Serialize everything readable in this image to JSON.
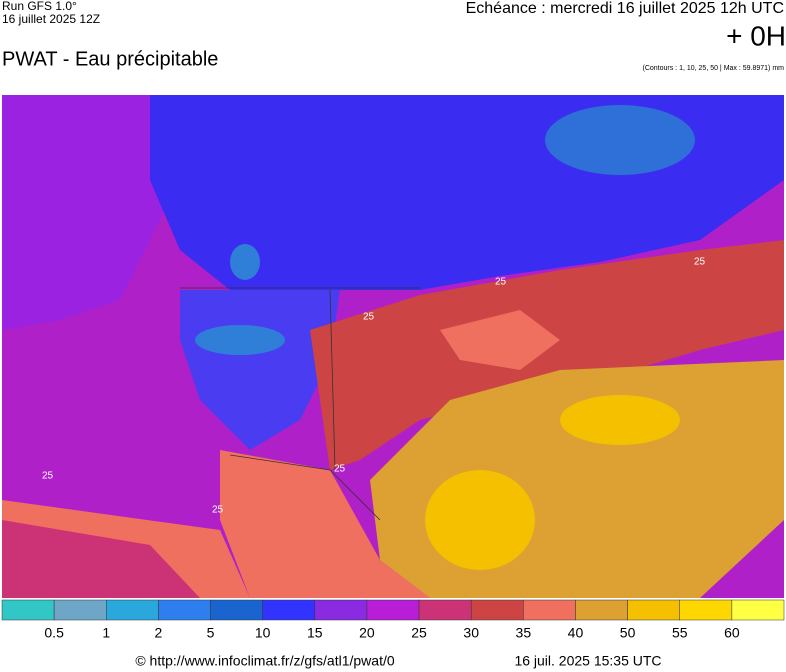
{
  "header": {
    "run": "Run GFS 1.0°",
    "run_date": "16 juillet 2025 12Z",
    "title": "PWAT - Eau précipitable",
    "echeance": "Echéance : mercredi 16 juillet 2025 12h UTC",
    "offset": "+ 0H",
    "contours": "(Contours : 1, 10, 25, 50 | Max : 59.8971) mm"
  },
  "map": {
    "contour_labels": [
      "25",
      "25",
      "25",
      "25",
      "25",
      "25"
    ]
  },
  "legend": {
    "colors": [
      "#33c6c6",
      "#6ea6c8",
      "#2aa8dc",
      "#2f7ef0",
      "#1a64d0",
      "#3333ff",
      "#8a2be2",
      "#b81ed8",
      "#cc3377",
      "#cc4444",
      "#f07060",
      "#dca033",
      "#f5c000",
      "#ffd700",
      "#ffff44"
    ],
    "labels": [
      0.5,
      1,
      2,
      5,
      10,
      15,
      20,
      25,
      30,
      35,
      40,
      50,
      55,
      60
    ]
  },
  "footer": {
    "source": "© http://www.infoclimat.fr/z/gfs/atl1/pwat/0",
    "timestamp": "16 juil. 2025 15:35 UTC"
  }
}
